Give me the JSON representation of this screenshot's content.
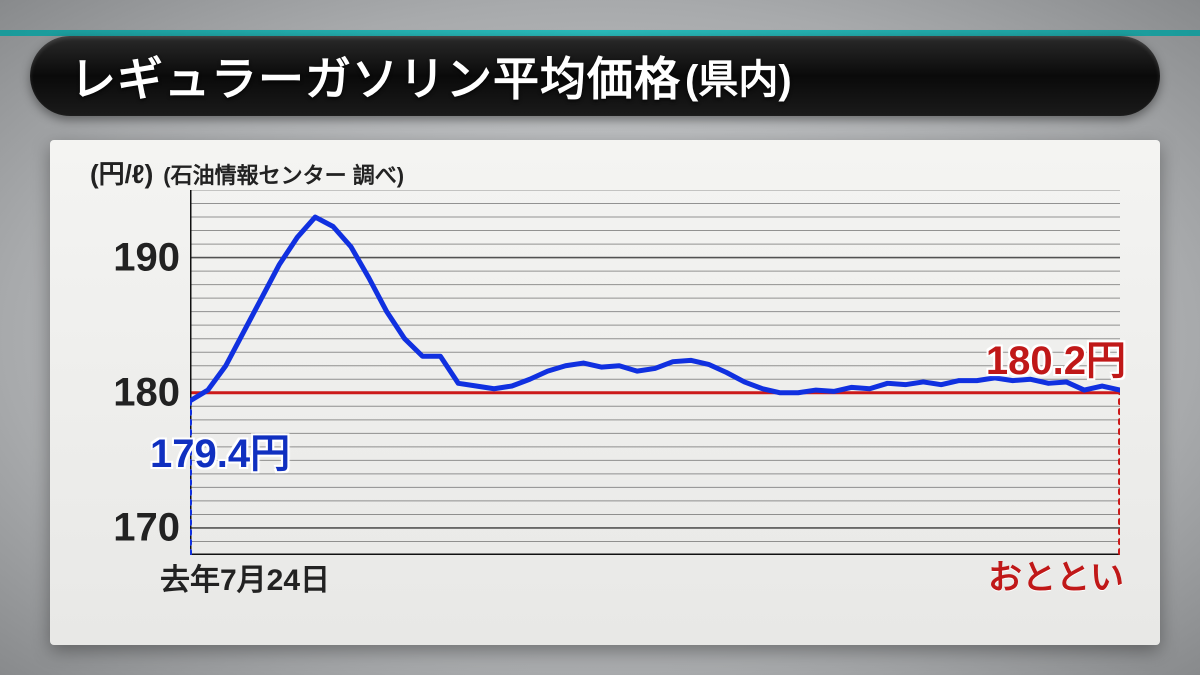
{
  "title": {
    "main": "レギュラーガソリン平均価格",
    "suffix": "(県内)"
  },
  "axis": {
    "unit": "(円/ℓ)",
    "source": "(石油情報センター 調べ)"
  },
  "chart": {
    "type": "line",
    "ylim_min": 168,
    "ylim_max": 195,
    "yticks": [
      170,
      180,
      190
    ],
    "ytick_labels": [
      "170",
      "180",
      "190"
    ],
    "ref_line_y": 180,
    "ref_line_color": "#cc1a1a",
    "minor_step": 1,
    "line_color": "#1030e0",
    "line_width": 5,
    "grid_color": "#444444",
    "grid_width": 1,
    "axis_color": "#111111",
    "axis_width": 3,
    "vmarker_color_start": "#1030e0",
    "vmarker_color_end": "#cc1a1a",
    "plot_bg": "transparent",
    "x_start_label": "去年7月24日",
    "x_end_label": "おととい",
    "start_value_label": "179.4円",
    "end_value_label": "180.2円",
    "series_y": [
      179.4,
      180.2,
      182.0,
      184.5,
      187.0,
      189.5,
      191.5,
      193.0,
      192.3,
      190.8,
      188.5,
      186.0,
      184.0,
      182.7,
      182.7,
      180.7,
      180.5,
      180.3,
      180.5,
      181.0,
      181.6,
      182.0,
      182.2,
      181.9,
      182.0,
      181.6,
      181.8,
      182.3,
      182.4,
      182.1,
      181.5,
      180.8,
      180.3,
      180.0,
      180.0,
      180.2,
      180.1,
      180.4,
      180.3,
      180.7,
      180.6,
      180.8,
      180.6,
      180.9,
      180.9,
      181.1,
      180.9,
      181.0,
      180.7,
      180.8,
      180.2,
      180.5,
      180.2
    ]
  },
  "colors": {
    "title_bg": "#0a0a0a",
    "title_accent": "#1a9a9a",
    "panel_bg_top": "#f4f4f2",
    "panel_bg_bot": "#e8e8e6",
    "callout_start": "#1030c0",
    "callout_end": "#c01818"
  },
  "fonts": {
    "title_size_pt": 46,
    "ytick_size_pt": 40,
    "callout_size_pt": 40,
    "xlabel_size_pt": 30
  }
}
